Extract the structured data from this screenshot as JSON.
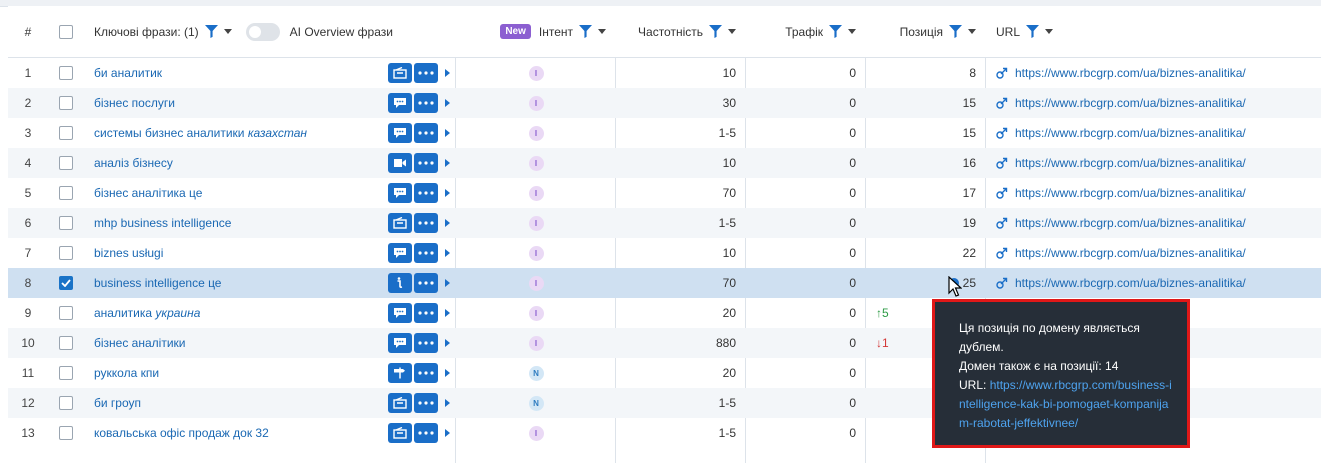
{
  "header": {
    "num": "#",
    "keywords": "Ключові фрази: (1)",
    "ai_overview": "AI Overview фрази",
    "new_badge": "New",
    "intent": "Інтент",
    "volume": "Частотність",
    "traffic": "Трафік",
    "position": "Позиція",
    "url": "URL"
  },
  "rows": [
    {
      "num": "1",
      "kw": "би аналитик",
      "kw_suffix": "",
      "icon": "serp",
      "intent": "I",
      "volume": "10",
      "traffic": "0",
      "change": "",
      "change_dir": "",
      "position": "8",
      "url": "https://www.rbcgrp.com/ua/biznes-analitika/",
      "checked": false
    },
    {
      "num": "2",
      "kw": "бізнес послуги",
      "kw_suffix": "",
      "icon": "chat",
      "intent": "I",
      "volume": "30",
      "traffic": "0",
      "change": "",
      "change_dir": "",
      "position": "15",
      "url": "https://www.rbcgrp.com/ua/biznes-analitika/",
      "checked": false
    },
    {
      "num": "3",
      "kw": "системы бизнес аналитики ",
      "kw_suffix": "казахстан",
      "icon": "chat",
      "intent": "I",
      "volume": "1-5",
      "traffic": "0",
      "change": "",
      "change_dir": "",
      "position": "15",
      "url": "https://www.rbcgrp.com/ua/biznes-analitika/",
      "checked": false
    },
    {
      "num": "4",
      "kw": "аналіз бізнесу",
      "kw_suffix": "",
      "icon": "video",
      "intent": "I",
      "volume": "10",
      "traffic": "0",
      "change": "",
      "change_dir": "",
      "position": "16",
      "url": "https://www.rbcgrp.com/ua/biznes-analitika/",
      "checked": false
    },
    {
      "num": "5",
      "kw": "бізнес аналітика це",
      "kw_suffix": "",
      "icon": "chat",
      "intent": "I",
      "volume": "70",
      "traffic": "0",
      "change": "",
      "change_dir": "",
      "position": "17",
      "url": "https://www.rbcgrp.com/ua/biznes-analitika/",
      "checked": false
    },
    {
      "num": "6",
      "kw": "mhp business intelligence",
      "kw_suffix": "",
      "icon": "serp",
      "intent": "I",
      "volume": "1-5",
      "traffic": "0",
      "change": "",
      "change_dir": "",
      "position": "19",
      "url": "https://www.rbcgrp.com/ua/biznes-analitika/",
      "checked": false
    },
    {
      "num": "7",
      "kw": "biznes usługi",
      "kw_suffix": "",
      "icon": "chat",
      "intent": "I",
      "volume": "10",
      "traffic": "0",
      "change": "",
      "change_dir": "",
      "position": "22",
      "url": "https://www.rbcgrp.com/ua/biznes-analitika/",
      "checked": false
    },
    {
      "num": "8",
      "kw": "business intelligence це",
      "kw_suffix": "",
      "icon": "info",
      "intent": "I",
      "volume": "70",
      "traffic": "0",
      "change": "",
      "change_dir": "",
      "position": "25",
      "url": "https://www.rbcgrp.com/ua/biznes-analitika/",
      "checked": true,
      "duplicate": true
    },
    {
      "num": "9",
      "kw": "аналитика ",
      "kw_suffix": "украина",
      "icon": "chat",
      "intent": "I",
      "volume": "20",
      "traffic": "0",
      "change": "5",
      "change_dir": "up",
      "position": "",
      "url": "nes-analitika/",
      "checked": false
    },
    {
      "num": "10",
      "kw": "бізнес аналітики",
      "kw_suffix": "",
      "icon": "chat",
      "intent": "I",
      "volume": "880",
      "traffic": "0",
      "change": "1",
      "change_dir": "down",
      "position": "",
      "url": "nes-analitika/",
      "checked": false
    },
    {
      "num": "11",
      "kw": "руккола кпи",
      "kw_suffix": "",
      "icon": "sign",
      "intent": "N",
      "volume": "20",
      "traffic": "0",
      "change": "",
      "change_dir": "",
      "position": "",
      "url": "",
      "checked": false
    },
    {
      "num": "12",
      "kw": "би гроуп",
      "kw_suffix": "",
      "icon": "serp",
      "intent": "N",
      "volume": "1-5",
      "traffic": "0",
      "change": "",
      "change_dir": "",
      "position": "",
      "url": "",
      "checked": false
    },
    {
      "num": "13",
      "kw": "ковальська офіс продаж док 32",
      "kw_suffix": "",
      "icon": "serp",
      "intent": "I",
      "volume": "1-5",
      "traffic": "0",
      "change": "",
      "change_dir": "",
      "position": "",
      "url": "",
      "checked": false
    }
  ],
  "tooltip": {
    "line1": "Ця позиція по домену являється дублем.",
    "line2": "Домен також є на позиції: 14",
    "url_label": "URL:",
    "url": "https://www.rbcgrp.com/business-intelligence-kak-bi-pomogaet-kompanijam-rabotat-jeffektivnee/"
  },
  "colors": {
    "accent": "#1a6ec8",
    "link": "#1a68b3",
    "intent_i": "#8c5fd1",
    "intent_n": "#2d7bc0",
    "up": "#2d9b45",
    "down": "#d33838",
    "tooltip_bg": "#262e38",
    "tooltip_border": "#e01818"
  }
}
